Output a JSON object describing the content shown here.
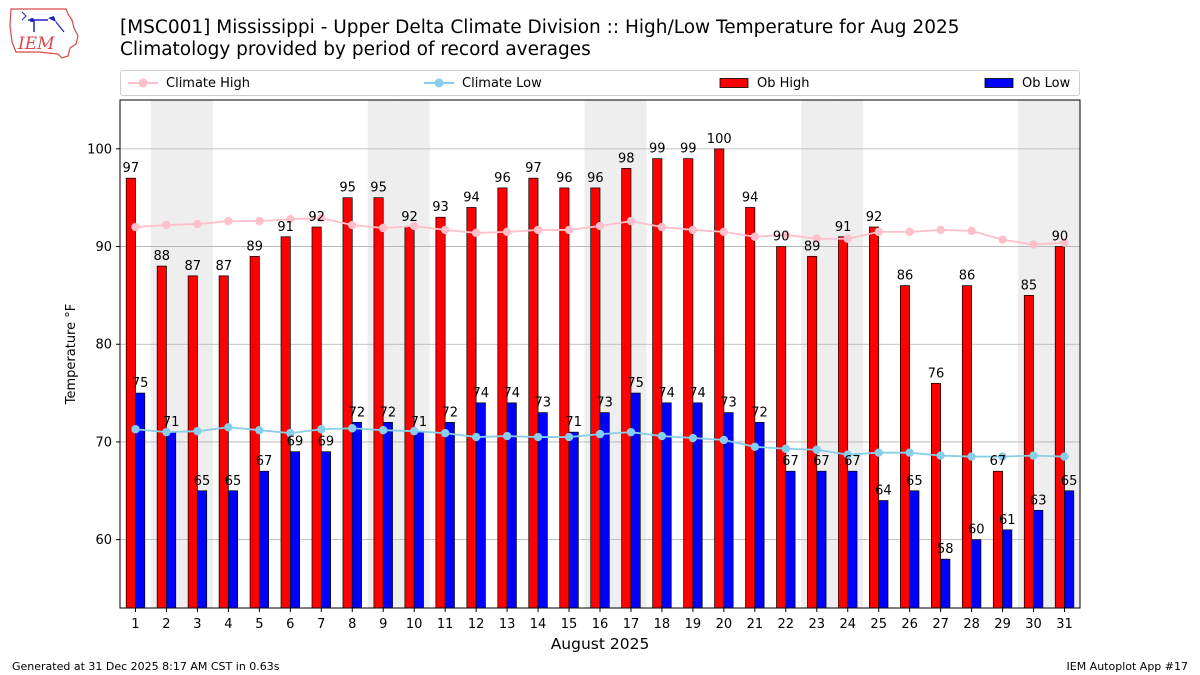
{
  "header": {
    "title": "[MSC001] Mississippi - Upper Delta Climate Division :: High/Low Temperature for Aug 2025",
    "subtitle": "Climatology provided by period of record averages"
  },
  "logo": {
    "text": "IEM"
  },
  "legend": {
    "climate_high": "Climate High",
    "climate_low": "Climate Low",
    "ob_high": "Ob High",
    "ob_low": "Ob Low"
  },
  "footer": {
    "generated": "Generated at 31 Dec 2025 8:17 AM CST in 0.63s",
    "app": "IEM Autoplot App #17"
  },
  "colors": {
    "ob_high": "#ff0000",
    "ob_low": "#0000ff",
    "climate_high": "#ffc0cb",
    "climate_low": "#87ceeb",
    "weekend_band": "#eeeeee",
    "grid": "#b0b0b0"
  },
  "chart_data": {
    "type": "bar",
    "title": "[MSC001] Mississippi - Upper Delta Climate Division :: High/Low Temperature for Aug 2025",
    "xlabel": "August 2025",
    "ylabel": "Temperature °F",
    "ylim": [
      53,
      105
    ],
    "yticks": [
      60,
      70,
      80,
      90,
      100
    ],
    "categories": [
      "1",
      "2",
      "3",
      "4",
      "5",
      "6",
      "7",
      "8",
      "9",
      "10",
      "11",
      "12",
      "13",
      "14",
      "15",
      "16",
      "17",
      "18",
      "19",
      "20",
      "21",
      "22",
      "23",
      "24",
      "25",
      "26",
      "27",
      "28",
      "29",
      "30",
      "31"
    ],
    "shaded_days": [
      2,
      3,
      9,
      10,
      16,
      17,
      23,
      24,
      30,
      31
    ],
    "series": [
      {
        "name": "Ob High",
        "kind": "bar",
        "values": [
          97,
          88,
          87,
          87,
          89,
          91,
          92,
          95,
          95,
          92,
          93,
          94,
          96,
          97,
          96,
          96,
          98,
          99,
          99,
          100,
          94,
          90,
          89,
          91,
          92,
          86,
          76,
          86,
          67,
          85,
          90
        ]
      },
      {
        "name": "Ob Low",
        "kind": "bar",
        "values": [
          75,
          71,
          65,
          65,
          67,
          69,
          69,
          72,
          72,
          71,
          72,
          74,
          74,
          73,
          71,
          73,
          75,
          74,
          74,
          73,
          72,
          67,
          67,
          67,
          64,
          65,
          58,
          60,
          61,
          63,
          65
        ]
      },
      {
        "name": "Climate High",
        "kind": "line",
        "values": [
          92.0,
          92.2,
          92.3,
          92.6,
          92.6,
          92.8,
          92.9,
          92.2,
          91.9,
          92.1,
          91.7,
          91.4,
          91.5,
          91.7,
          91.7,
          92.1,
          92.6,
          92.0,
          91.7,
          91.5,
          91.0,
          91.2,
          90.8,
          90.8,
          91.5,
          91.5,
          91.7,
          91.6,
          90.7,
          90.2,
          90.4
        ]
      },
      {
        "name": "Climate Low",
        "kind": "line",
        "values": [
          71.3,
          71.0,
          71.1,
          71.5,
          71.2,
          70.9,
          71.3,
          71.4,
          71.2,
          71.1,
          70.9,
          70.5,
          70.6,
          70.5,
          70.5,
          70.8,
          71.0,
          70.6,
          70.4,
          70.2,
          69.5,
          69.3,
          69.2,
          68.7,
          68.9,
          68.9,
          68.6,
          68.5,
          68.5,
          68.6,
          68.5
        ]
      }
    ]
  }
}
